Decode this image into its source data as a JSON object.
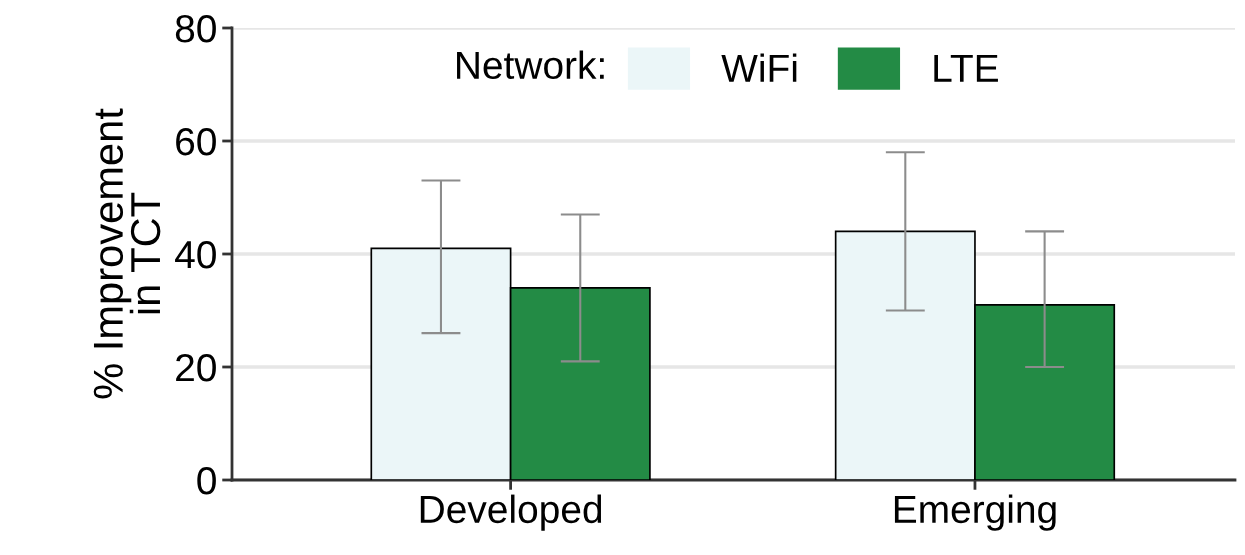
{
  "chart_data": {
    "type": "bar",
    "ylabel": "% Improvement\nin TCT",
    "legend_title": "Network:",
    "categories": [
      "Developed",
      "Emerging"
    ],
    "series": [
      {
        "name": "WiFi",
        "color": "#ebf6f8",
        "values": [
          41,
          44
        ],
        "errors": [
          [
            26,
            53
          ],
          [
            30,
            58
          ]
        ]
      },
      {
        "name": "LTE",
        "color": "#238b45",
        "values": [
          34,
          31
        ],
        "errors": [
          [
            21,
            47
          ],
          [
            20,
            44
          ]
        ]
      }
    ],
    "ylim": [
      0,
      80
    ],
    "yticks": [
      0,
      20,
      40,
      60,
      80
    ],
    "grid": "y",
    "legend": "top"
  }
}
